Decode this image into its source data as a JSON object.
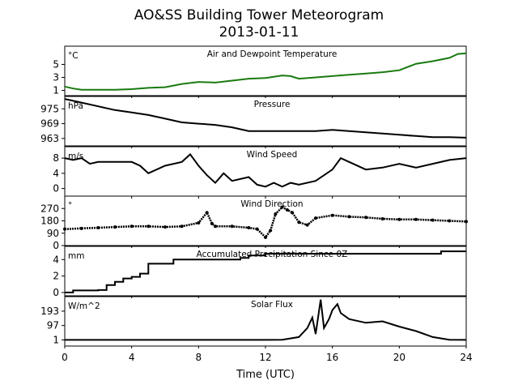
{
  "figure": {
    "title_line1": "AO&SS Building Tower Meteorogram",
    "title_line2": "2013-01-11",
    "xlabel": "Time (UTC)",
    "xticks": [
      "0",
      "4",
      "8",
      "12",
      "16",
      "20",
      "24"
    ]
  },
  "chart_data": [
    {
      "type": "line",
      "title": "Air and Dewpoint Temperature",
      "ylabel": "°C",
      "ylim": [
        0.2,
        7.8
      ],
      "yticks": [
        1,
        3,
        5
      ],
      "xlim": [
        0,
        24
      ],
      "line_color": "#1a7a10",
      "grid": false,
      "series": [
        {
          "x": [
            0,
            0.5,
            1,
            2,
            3,
            4,
            5,
            6,
            7,
            8,
            9,
            10,
            11,
            12,
            12.5,
            13,
            13.5,
            14,
            15,
            16,
            17,
            18,
            19,
            20,
            21,
            22,
            23,
            23.5,
            24
          ],
          "values": [
            1.6,
            1.3,
            1.1,
            1.1,
            1.1,
            1.2,
            1.4,
            1.5,
            2.0,
            2.3,
            2.2,
            2.5,
            2.8,
            2.9,
            3.1,
            3.3,
            3.2,
            2.8,
            3.0,
            3.2,
            3.4,
            3.6,
            3.8,
            4.1,
            5.1,
            5.5,
            6.0,
            6.6,
            6.7
          ]
        }
      ]
    },
    {
      "type": "line",
      "title": "Pressure",
      "ylabel": "hPa",
      "ylim": [
        960,
        980
      ],
      "yticks": [
        963,
        969,
        975
      ],
      "xlim": [
        0,
        24
      ],
      "grid": false,
      "series": [
        {
          "x": [
            0,
            1,
            2,
            3,
            4,
            5,
            6,
            7,
            8,
            9,
            10,
            11,
            12,
            13,
            14,
            15,
            16,
            17,
            18,
            19,
            20,
            21,
            22,
            23,
            24
          ],
          "values": [
            979,
            977.5,
            976,
            974.5,
            973.5,
            972.5,
            971,
            969.5,
            969,
            968.5,
            967.5,
            966,
            966,
            966,
            966,
            966,
            966.5,
            966,
            965.5,
            965,
            964.5,
            964,
            963.5,
            963.5,
            963.3
          ]
        }
      ]
    },
    {
      "type": "line",
      "title": "Wind Speed",
      "ylabel": "m/s",
      "ylim": [
        -2,
        11
      ],
      "yticks": [
        0,
        4,
        8
      ],
      "xlim": [
        0,
        24
      ],
      "grid": false,
      "series": [
        {
          "x": [
            0,
            0.5,
            1,
            1.5,
            2,
            3,
            4,
            4.5,
            5,
            6,
            7,
            7.5,
            8,
            8.5,
            9,
            9.5,
            10,
            11,
            11.5,
            12,
            12.5,
            13,
            13.5,
            14,
            15,
            16,
            16.5,
            17,
            18,
            19,
            20,
            21,
            22,
            23,
            24
          ],
          "values": [
            8,
            7.5,
            8,
            6.5,
            7,
            7,
            7,
            6,
            4,
            6,
            7,
            9,
            6,
            3.5,
            1.5,
            4,
            2,
            3,
            1,
            0.5,
            1.5,
            0.5,
            1.5,
            1,
            2,
            5,
            8,
            7,
            5,
            5.5,
            6.5,
            5.5,
            6.5,
            7.5,
            8
          ]
        }
      ]
    },
    {
      "type": "scatter",
      "title": "Wind Direction",
      "ylabel": "°",
      "ylim": [
        0,
        360
      ],
      "yticks": [
        0,
        90,
        180,
        270
      ],
      "xlim": [
        0,
        24
      ],
      "grid": false,
      "series": [
        {
          "x": [
            0,
            1,
            2,
            3,
            4,
            5,
            6,
            7,
            8,
            8.5,
            8.8,
            9,
            10,
            11,
            11.5,
            12,
            12.3,
            12.6,
            13,
            13.3,
            13.6,
            14,
            14.5,
            15,
            16,
            17,
            18,
            19,
            20,
            21,
            22,
            23,
            24
          ],
          "values": [
            120,
            125,
            130,
            135,
            140,
            140,
            135,
            140,
            165,
            240,
            160,
            140,
            140,
            130,
            120,
            60,
            110,
            230,
            280,
            260,
            240,
            170,
            150,
            200,
            220,
            210,
            205,
            195,
            190,
            190,
            185,
            180,
            175
          ]
        }
      ]
    },
    {
      "type": "line",
      "title": "Accumulated Precipitation Since 0Z",
      "ylabel": "mm",
      "ylim": [
        -0.4,
        5.6
      ],
      "yticks": [
        0,
        2,
        4
      ],
      "xlim": [
        0,
        24
      ],
      "grid": false,
      "series": [
        {
          "x": [
            0,
            0.5,
            2,
            2.5,
            3,
            3.5,
            4,
            4.5,
            5,
            6.5,
            10,
            10.5,
            11,
            12,
            22,
            22.5,
            24
          ],
          "values": [
            0,
            0.25,
            0.3,
            0.9,
            1.3,
            1.7,
            1.9,
            2.3,
            3.5,
            4.0,
            4.0,
            4.2,
            4.5,
            4.7,
            4.7,
            5.0,
            5.0
          ]
        }
      ]
    },
    {
      "type": "line",
      "title": "Solar Flux",
      "ylabel": "W/m^2",
      "ylim": [
        -40,
        290
      ],
      "yticks": [
        1,
        97,
        193
      ],
      "xlim": [
        0,
        24
      ],
      "grid": false,
      "series": [
        {
          "x": [
            0,
            6,
            12,
            13,
            14,
            14.5,
            14.8,
            15,
            15.3,
            15.5,
            15.8,
            16,
            16.3,
            16.5,
            17,
            18,
            19,
            20,
            21,
            22,
            23,
            24
          ],
          "values": [
            1,
            1,
            1,
            2,
            20,
            80,
            150,
            40,
            270,
            80,
            140,
            200,
            240,
            180,
            140,
            115,
            125,
            90,
            60,
            20,
            2,
            1
          ]
        }
      ]
    }
  ]
}
